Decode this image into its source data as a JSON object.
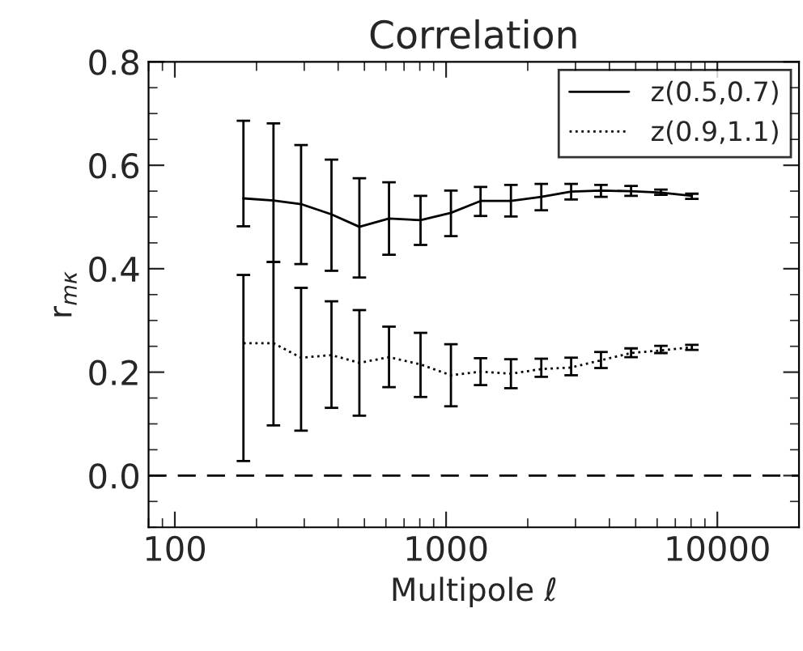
{
  "chart_data": {
    "type": "line",
    "title": "Correlation",
    "xlabel": "Multipole ℓ",
    "ylabel": "r$_{mκ}$",
    "x": [
      179,
      231,
      292,
      378,
      479,
      616,
      805,
      1042,
      1340,
      1734,
      2244,
      2891,
      3724,
      4808,
      6194,
      8054
    ],
    "series": [
      {
        "name": "z(0.5,0.7)",
        "color": "#000000",
        "line_style": "solid",
        "values": [
          0.536,
          0.532,
          0.525,
          0.505,
          0.481,
          0.497,
          0.494,
          0.508,
          0.531,
          0.531,
          0.539,
          0.549,
          0.551,
          0.55,
          0.547,
          0.541
        ],
        "errors": [
          [
            0.482,
            0.686
          ],
          [
            0.413,
            0.681
          ],
          [
            0.409,
            0.639
          ],
          [
            0.396,
            0.611
          ],
          [
            0.383,
            0.575
          ],
          [
            0.427,
            0.567
          ],
          [
            0.446,
            0.541
          ],
          [
            0.463,
            0.551
          ],
          [
            0.502,
            0.558
          ],
          [
            0.501,
            0.562
          ],
          [
            0.513,
            0.564
          ],
          [
            0.534,
            0.564
          ],
          [
            0.539,
            0.562
          ],
          [
            0.541,
            0.56
          ],
          [
            0.543,
            0.553
          ],
          [
            0.535,
            0.545
          ]
        ]
      },
      {
        "name": "z(0.9,1.1)",
        "color": "#000000",
        "line_style": "dotted",
        "values": [
          0.256,
          0.256,
          0.228,
          0.233,
          0.218,
          0.229,
          0.215,
          0.194,
          0.201,
          0.197,
          0.206,
          0.209,
          0.223,
          0.237,
          0.242,
          0.248
        ],
        "errors": [
          [
            0.028,
            0.388
          ],
          [
            0.097,
            0.413
          ],
          [
            0.087,
            0.363
          ],
          [
            0.131,
            0.337
          ],
          [
            0.116,
            0.32
          ],
          [
            0.171,
            0.288
          ],
          [
            0.152,
            0.276
          ],
          [
            0.134,
            0.254
          ],
          [
            0.175,
            0.227
          ],
          [
            0.169,
            0.225
          ],
          [
            0.191,
            0.226
          ],
          [
            0.194,
            0.228
          ],
          [
            0.208,
            0.239
          ],
          [
            0.229,
            0.246
          ],
          [
            0.237,
            0.251
          ],
          [
            0.243,
            0.253
          ]
        ]
      }
    ],
    "log": "x",
    "xlim": [
      80,
      20000
    ],
    "xticks": [
      100,
      1000,
      10000
    ],
    "ylim": [
      -0.1,
      0.8
    ],
    "yticks": [
      {
        "value": 0,
        "label": "0.0"
      },
      0.2,
      0.4,
      0.6,
      0.8
    ],
    "ref_lines": [
      {
        "axis": "y",
        "value": 0,
        "line_style": "dashed",
        "color": "#000000"
      }
    ],
    "legend": "top right",
    "grid": false,
    "marker": "none"
  }
}
